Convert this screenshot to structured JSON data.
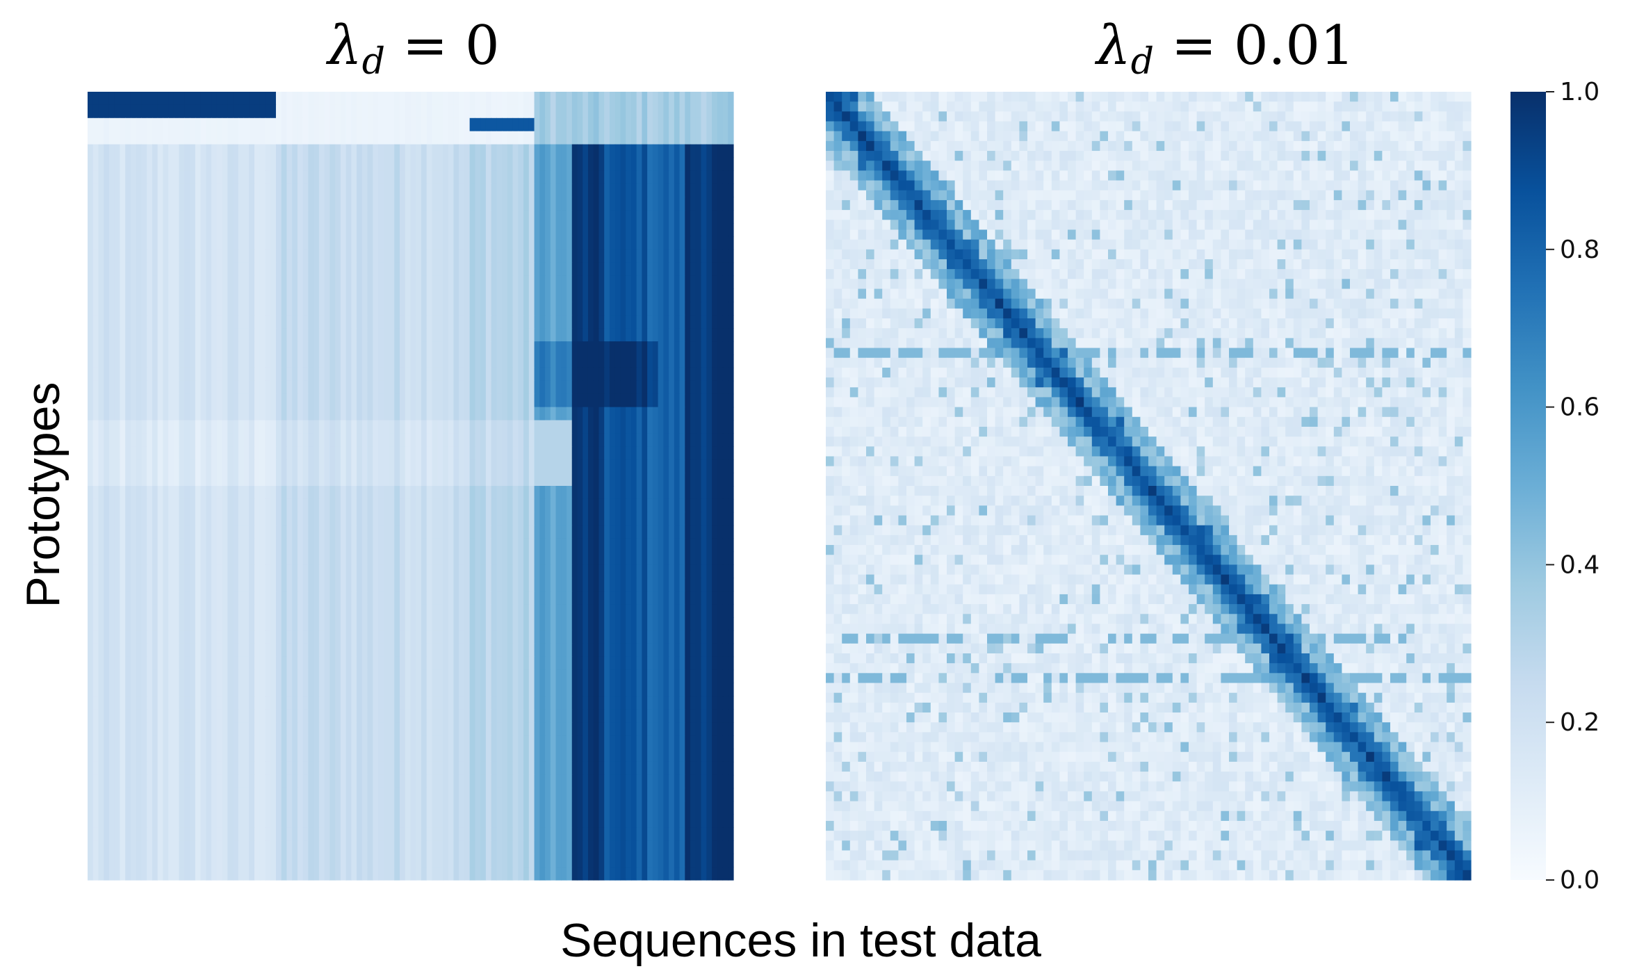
{
  "figure": {
    "xlabel": "Sequences in test data",
    "ylabel": "Prototypes"
  },
  "chart_data": [
    {
      "type": "heatmap",
      "title_symbol": "λ",
      "title_subscript": "d",
      "title_rest": " = 0",
      "xlabel": "Sequences in test data",
      "ylabel": "Prototypes",
      "colormap": "Blues",
      "vmin": 0.0,
      "vmax": 1.0,
      "structure": "row-constant bands: top rows strongly activated by first column groups, right-most column groups strongly activated for nearly all prototypes",
      "column_groups": [
        {
          "from": 0.0,
          "to": 0.285,
          "level": 0.18
        },
        {
          "from": 0.285,
          "to": 0.59,
          "level": 0.24
        },
        {
          "from": 0.59,
          "to": 0.69,
          "level": 0.3
        },
        {
          "from": 0.69,
          "to": 0.75,
          "level": 0.55
        },
        {
          "from": 0.75,
          "to": 0.8,
          "level": 0.95
        },
        {
          "from": 0.8,
          "to": 0.86,
          "level": 0.85
        },
        {
          "from": 0.86,
          "to": 0.92,
          "level": 0.8
        },
        {
          "from": 0.92,
          "to": 1.0,
          "level": 0.97
        }
      ]
    },
    {
      "type": "heatmap",
      "title_symbol": "λ",
      "title_subscript": "d",
      "title_rest": " = 0.01",
      "xlabel": "Sequences in test data",
      "ylabel": "Prototypes",
      "colormap": "Blues",
      "vmin": 0.0,
      "vmax": 1.0,
      "structure": "block-diagonal: each prototype strongly activated by its own cluster of test sequences, weak elsewhere",
      "diagonal_level": 0.9,
      "off_diagonal_level": 0.12
    }
  ],
  "colorbar": {
    "ticks": [
      {
        "value": 1.0,
        "label": "1.0"
      },
      {
        "value": 0.8,
        "label": "0.8"
      },
      {
        "value": 0.6,
        "label": "0.6"
      },
      {
        "value": 0.4,
        "label": "0.4"
      },
      {
        "value": 0.2,
        "label": "0.2"
      },
      {
        "value": 0.0,
        "label": "0.0"
      }
    ],
    "colors": [
      "#f7fbff",
      "#deebf7",
      "#c6dbef",
      "#9ecae1",
      "#6baed6",
      "#4292c6",
      "#2171b5",
      "#08519c",
      "#08306b"
    ]
  }
}
